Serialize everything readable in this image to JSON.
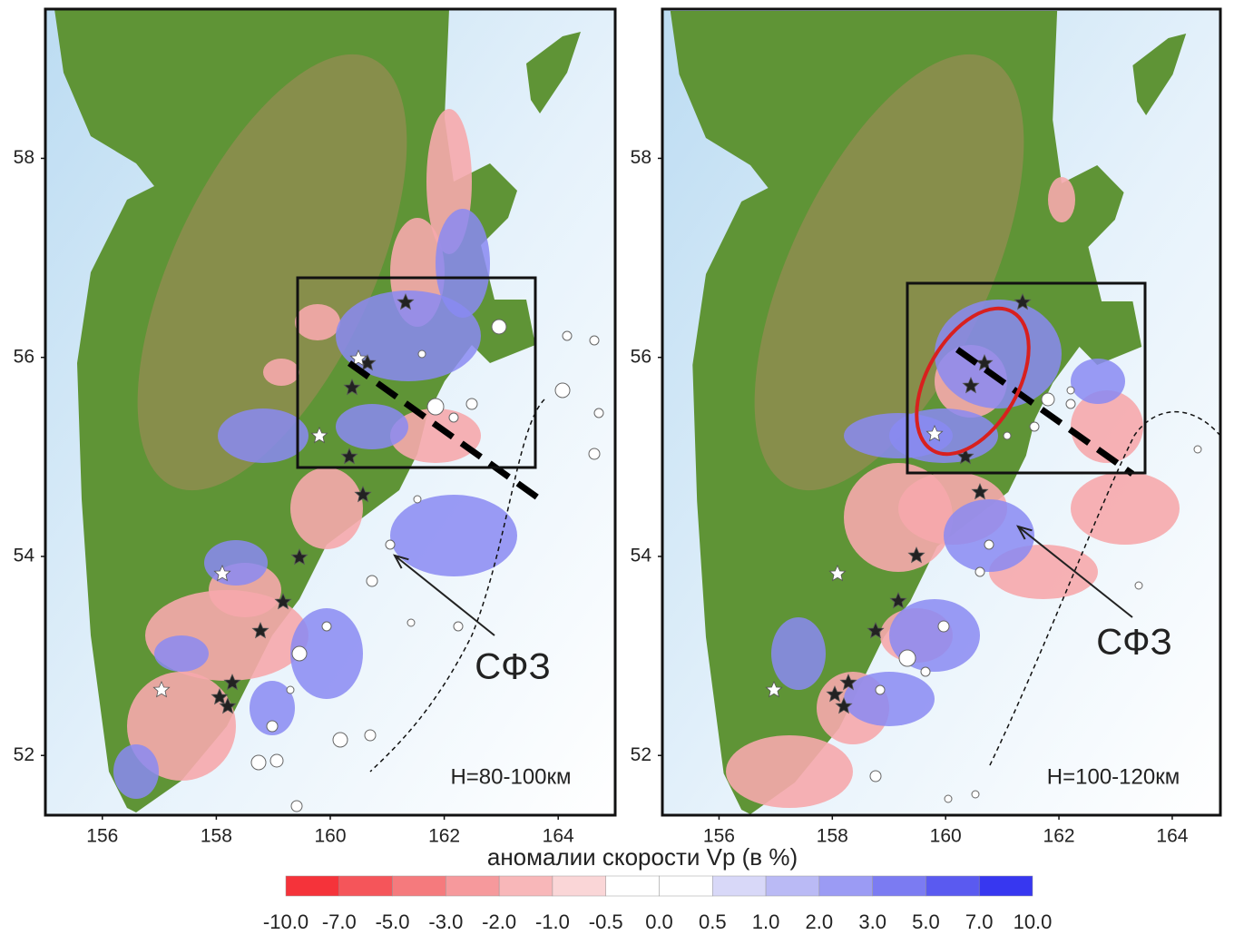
{
  "panels": [
    {
      "label": "H=80-100км",
      "annotation": "СФЗ",
      "xticks": [
        156,
        158,
        160,
        162,
        164
      ],
      "yticks": [
        52,
        54,
        56,
        58
      ],
      "xlim": [
        155,
        165
      ],
      "ylim": [
        51.4,
        59.5
      ]
    },
    {
      "label": "H=100-120км",
      "annotation": "СФЗ",
      "xticks": [
        156,
        158,
        160,
        162,
        164
      ],
      "yticks": [
        52,
        54,
        56,
        58
      ],
      "xlim": [
        155,
        164.85
      ],
      "ylim": [
        51.4,
        59.5
      ]
    }
  ],
  "colorbar": {
    "title": "аномалии  скорости Vp (в %)",
    "ticks": [
      {
        "value": -10,
        "label": "-10.0"
      },
      {
        "value": -7,
        "label": "-7.0"
      },
      {
        "value": -5,
        "label": "-5.0"
      },
      {
        "value": -3,
        "label": "-3.0"
      },
      {
        "value": -2,
        "label": "-2.0"
      },
      {
        "value": -1,
        "label": "-1.0"
      },
      {
        "value": -0.5,
        "label": "-0.5"
      },
      {
        "value": 0,
        "label": "0.0"
      },
      {
        "value": 0.5,
        "label": "0.5"
      },
      {
        "value": 1,
        "label": "1.0"
      },
      {
        "value": 2,
        "label": "2.0"
      },
      {
        "value": 3,
        "label": "3.0"
      },
      {
        "value": 5,
        "label": "5.0"
      },
      {
        "value": 7,
        "label": "7.0"
      },
      {
        "value": 10,
        "label": "10.0"
      }
    ],
    "colors": [
      "#f5333a",
      "#f5555a",
      "#f57a7d",
      "#f6999c",
      "#f8b7b9",
      "#fad6d7",
      "#ffffff",
      "#ffffff",
      "#d8d8f8",
      "#babaf5",
      "#9b9bf4",
      "#7b7bf2",
      "#5a5af0",
      "#3737f0"
    ]
  }
}
